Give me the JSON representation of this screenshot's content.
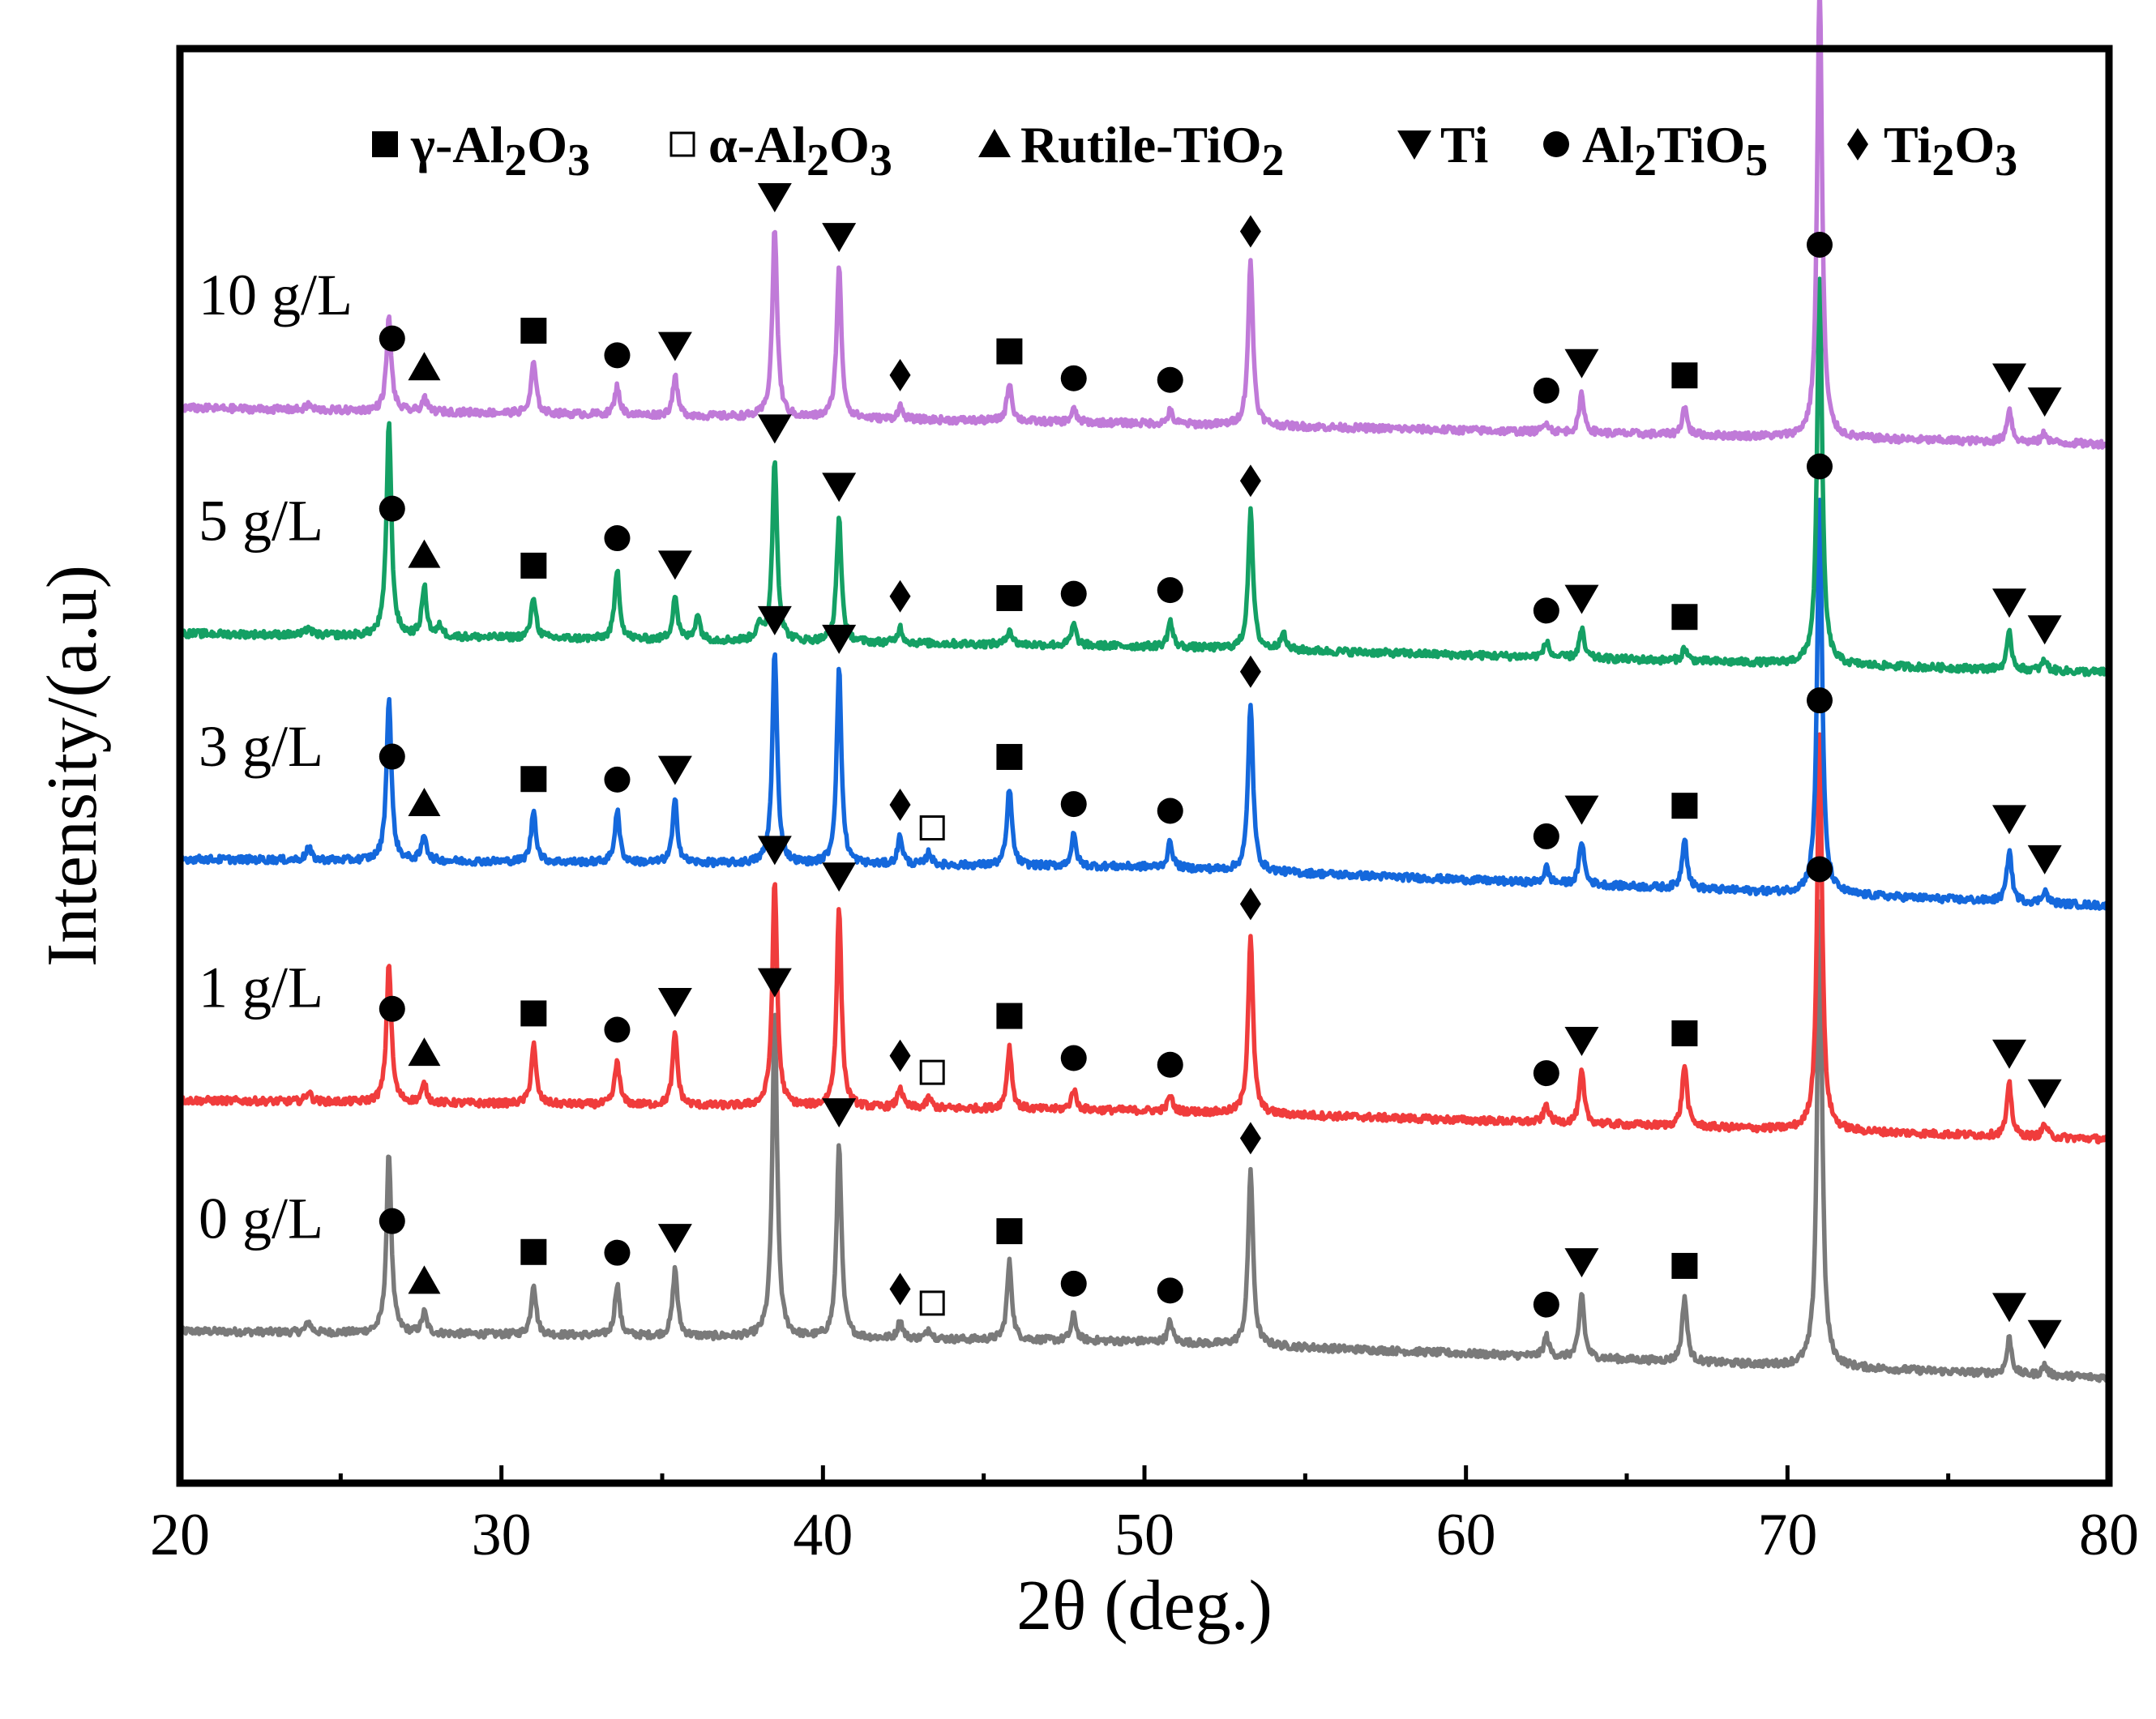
{
  "chart_data": {
    "type": "line",
    "title": "",
    "xlabel": "2θ (deg.)",
    "ylabel": "Intensity/(a.u)",
    "xlim": [
      20,
      80
    ],
    "x_ticks": [
      20,
      30,
      40,
      50,
      60,
      70,
      80
    ],
    "grid": false,
    "legend_position": "top",
    "legend": [
      {
        "symbol": "filled-square",
        "label": "γ-Al2O3"
      },
      {
        "symbol": "open-square",
        "label": "α-Al2O3"
      },
      {
        "symbol": "filled-triangle-up",
        "label": "Rutile-TiO2"
      },
      {
        "symbol": "filled-triangle-down",
        "label": "Ti"
      },
      {
        "symbol": "filled-circle",
        "label": "Al2TiO5"
      },
      {
        "symbol": "filled-diamond",
        "label": "Ti2O3"
      }
    ],
    "series": [
      {
        "name": "0 g/L",
        "color": "#7a7a7a",
        "offset": 0,
        "baseline": [
          [
            20,
            1.8
          ],
          [
            50,
            1.4
          ],
          [
            80,
            0.0
          ]
        ],
        "peaks": [
          [
            24.0,
            0.4
          ],
          [
            26.5,
            7.0
          ],
          [
            27.6,
            0.8
          ],
          [
            31.0,
            2.0
          ],
          [
            33.6,
            2.0
          ],
          [
            35.4,
            2.6
          ],
          [
            38.5,
            12.5
          ],
          [
            40.5,
            7.5
          ],
          [
            42.4,
            0.7
          ],
          [
            43.3,
            0.4
          ],
          [
            45.8,
            3.0
          ],
          [
            47.8,
            1.0
          ],
          [
            50.8,
            0.8
          ],
          [
            53.3,
            6.8
          ],
          [
            62.5,
            0.8
          ],
          [
            63.6,
            2.5
          ],
          [
            66.8,
            2.5
          ],
          [
            71.0,
            18.0
          ],
          [
            76.9,
            1.4
          ],
          [
            78.0,
            0.4
          ]
        ],
        "markers": [
          {
            "x": 26.6,
            "s": "filled-circle"
          },
          {
            "x": 27.6,
            "s": "filled-triangle-up"
          },
          {
            "x": 31.0,
            "s": "filled-square"
          },
          {
            "x": 33.6,
            "s": "filled-circle"
          },
          {
            "x": 35.4,
            "s": "filled-triangle-down"
          },
          {
            "x": 38.5,
            "s": "filled-triangle-down"
          },
          {
            "x": 40.5,
            "s": "filled-triangle-down"
          },
          {
            "x": 42.4,
            "s": "filled-diamond"
          },
          {
            "x": 43.4,
            "s": "open-square"
          },
          {
            "x": 45.8,
            "s": "filled-square"
          },
          {
            "x": 47.8,
            "s": "filled-circle"
          },
          {
            "x": 50.8,
            "s": "filled-circle"
          },
          {
            "x": 53.3,
            "s": "filled-diamond"
          },
          {
            "x": 62.5,
            "s": "filled-circle"
          },
          {
            "x": 63.6,
            "s": "filled-triangle-down"
          },
          {
            "x": 66.8,
            "s": "filled-square"
          },
          {
            "x": 71.0,
            "s": "filled-circle"
          },
          {
            "x": 76.9,
            "s": "filled-triangle-down"
          },
          {
            "x": 78.0,
            "s": "filled-triangle-down"
          }
        ]
      },
      {
        "name": "1 g/L",
        "color": "#f03c3c",
        "offset": 9.2,
        "baseline": [
          [
            20,
            1.5
          ],
          [
            50,
            1.1
          ],
          [
            80,
            0.0
          ]
        ],
        "peaks": [
          [
            24.0,
            0.4
          ],
          [
            26.5,
            5.4
          ],
          [
            27.6,
            0.7
          ],
          [
            31.0,
            2.3
          ],
          [
            33.6,
            1.7
          ],
          [
            35.4,
            2.8
          ],
          [
            38.5,
            8.7
          ],
          [
            40.5,
            7.7
          ],
          [
            42.4,
            0.8
          ],
          [
            43.3,
            0.4
          ],
          [
            45.8,
            2.4
          ],
          [
            47.8,
            0.8
          ],
          [
            50.8,
            0.6
          ],
          [
            53.3,
            6.9
          ],
          [
            62.5,
            0.7
          ],
          [
            63.6,
            2.0
          ],
          [
            66.8,
            2.4
          ],
          [
            71.0,
            15.4
          ],
          [
            76.9,
            2.0
          ],
          [
            78.0,
            0.5
          ]
        ],
        "markers": [
          {
            "x": 26.6,
            "s": "filled-circle"
          },
          {
            "x": 27.6,
            "s": "filled-triangle-up"
          },
          {
            "x": 31.0,
            "s": "filled-square"
          },
          {
            "x": 33.6,
            "s": "filled-circle"
          },
          {
            "x": 35.4,
            "s": "filled-triangle-down"
          },
          {
            "x": 38.5,
            "s": "filled-triangle-down"
          },
          {
            "x": 40.5,
            "s": "filled-triangle-down"
          },
          {
            "x": 42.4,
            "s": "filled-diamond"
          },
          {
            "x": 43.4,
            "s": "open-square"
          },
          {
            "x": 45.8,
            "s": "filled-square"
          },
          {
            "x": 47.8,
            "s": "filled-circle"
          },
          {
            "x": 50.8,
            "s": "filled-circle"
          },
          {
            "x": 53.3,
            "s": "filled-diamond"
          },
          {
            "x": 62.5,
            "s": "filled-circle"
          },
          {
            "x": 63.6,
            "s": "filled-triangle-down"
          },
          {
            "x": 66.8,
            "s": "filled-square"
          },
          {
            "x": 71.0,
            "s": "filled-circle"
          },
          {
            "x": 76.9,
            "s": "filled-triangle-down"
          },
          {
            "x": 78.0,
            "s": "filled-triangle-down"
          }
        ]
      },
      {
        "name": "3 g/L",
        "color": "#1468dc",
        "offset": 18.2,
        "baseline": [
          [
            20,
            1.8
          ],
          [
            50,
            1.5
          ],
          [
            80,
            0.0
          ]
        ],
        "peaks": [
          [
            24.0,
            0.5
          ],
          [
            26.5,
            6.3
          ],
          [
            27.6,
            1.0
          ],
          [
            31.0,
            2.0
          ],
          [
            33.6,
            2.0
          ],
          [
            35.4,
            2.4
          ],
          [
            38.5,
            8.2
          ],
          [
            40.5,
            7.5
          ],
          [
            42.4,
            1.1
          ],
          [
            43.3,
            0.5
          ],
          [
            45.8,
            3.0
          ],
          [
            47.8,
            1.2
          ],
          [
            50.8,
            1.0
          ],
          [
            53.3,
            6.5
          ],
          [
            62.5,
            0.6
          ],
          [
            63.6,
            1.7
          ],
          [
            66.8,
            2.0
          ],
          [
            71.0,
            15.3
          ],
          [
            76.9,
            2.0
          ],
          [
            78.0,
            0.5
          ]
        ],
        "markers": [
          {
            "x": 26.6,
            "s": "filled-circle"
          },
          {
            "x": 27.6,
            "s": "filled-triangle-up"
          },
          {
            "x": 31.0,
            "s": "filled-square"
          },
          {
            "x": 33.6,
            "s": "filled-circle"
          },
          {
            "x": 35.4,
            "s": "filled-triangle-down"
          },
          {
            "x": 38.5,
            "s": "filled-triangle-down"
          },
          {
            "x": 40.5,
            "s": "filled-triangle-down"
          },
          {
            "x": 42.4,
            "s": "filled-diamond"
          },
          {
            "x": 43.4,
            "s": "open-square"
          },
          {
            "x": 45.8,
            "s": "filled-square"
          },
          {
            "x": 47.8,
            "s": "filled-circle"
          },
          {
            "x": 50.8,
            "s": "filled-circle"
          },
          {
            "x": 53.3,
            "s": "filled-diamond"
          },
          {
            "x": 62.5,
            "s": "filled-circle"
          },
          {
            "x": 63.6,
            "s": "filled-triangle-down"
          },
          {
            "x": 66.8,
            "s": "filled-square"
          },
          {
            "x": 71.0,
            "s": "filled-circle"
          },
          {
            "x": 76.9,
            "s": "filled-triangle-down"
          },
          {
            "x": 78.0,
            "s": "filled-triangle-down"
          }
        ]
      },
      {
        "name": "5 g/L",
        "color": "#14a064",
        "offset": 27.2,
        "baseline": [
          [
            20,
            1.5
          ],
          [
            50,
            1.0
          ],
          [
            80,
            0.0
          ]
        ],
        "peaks": [
          [
            24.0,
            0.3
          ],
          [
            26.5,
            8.3
          ],
          [
            27.6,
            1.9
          ],
          [
            28.1,
            0.4
          ],
          [
            31.0,
            1.6
          ],
          [
            33.6,
            2.7
          ],
          [
            35.4,
            1.7
          ],
          [
            36.1,
            1.0
          ],
          [
            38.0,
            0.6
          ],
          [
            38.5,
            7.0
          ],
          [
            40.5,
            4.8
          ],
          [
            42.4,
            0.6
          ],
          [
            45.8,
            0.6
          ],
          [
            47.8,
            0.8
          ],
          [
            50.8,
            1.0
          ],
          [
            53.3,
            5.3
          ],
          [
            54.3,
            0.7
          ],
          [
            62.5,
            0.6
          ],
          [
            63.6,
            1.1
          ],
          [
            66.8,
            0.5
          ],
          [
            71.0,
            15.0
          ],
          [
            76.9,
            1.4
          ],
          [
            78.0,
            0.4
          ]
        ],
        "markers": [
          {
            "x": 26.6,
            "s": "filled-circle"
          },
          {
            "x": 27.6,
            "s": "filled-triangle-up"
          },
          {
            "x": 31.0,
            "s": "filled-square"
          },
          {
            "x": 33.6,
            "s": "filled-circle"
          },
          {
            "x": 35.4,
            "s": "filled-triangle-down"
          },
          {
            "x": 38.5,
            "s": "filled-triangle-down"
          },
          {
            "x": 40.5,
            "s": "filled-triangle-down"
          },
          {
            "x": 42.4,
            "s": "filled-diamond"
          },
          {
            "x": 45.8,
            "s": "filled-square"
          },
          {
            "x": 47.8,
            "s": "filled-circle"
          },
          {
            "x": 50.8,
            "s": "filled-circle"
          },
          {
            "x": 53.3,
            "s": "filled-diamond"
          },
          {
            "x": 62.5,
            "s": "filled-circle"
          },
          {
            "x": 63.6,
            "s": "filled-triangle-down"
          },
          {
            "x": 66.8,
            "s": "filled-square"
          },
          {
            "x": 71.0,
            "s": "filled-circle"
          },
          {
            "x": 76.9,
            "s": "filled-triangle-down"
          },
          {
            "x": 78.0,
            "s": "filled-triangle-down"
          }
        ]
      },
      {
        "name": "10 g/L",
        "color": "#c07ad8",
        "offset": 36.0,
        "baseline": [
          [
            20,
            1.4
          ],
          [
            50,
            0.8
          ],
          [
            80,
            0.0
          ]
        ],
        "peaks": [
          [
            24.0,
            0.2
          ],
          [
            26.5,
            3.6
          ],
          [
            27.6,
            0.5
          ],
          [
            31.0,
            2.0
          ],
          [
            33.6,
            1.1
          ],
          [
            35.4,
            1.5
          ],
          [
            38.5,
            7.3
          ],
          [
            40.5,
            5.8
          ],
          [
            42.4,
            0.5
          ],
          [
            45.8,
            1.5
          ],
          [
            47.8,
            0.5
          ],
          [
            50.8,
            0.5
          ],
          [
            53.3,
            6.3
          ],
          [
            62.5,
            0.4
          ],
          [
            63.6,
            1.5
          ],
          [
            66.8,
            1.1
          ],
          [
            71.0,
            17.5
          ],
          [
            76.9,
            1.3
          ],
          [
            78.0,
            0.4
          ]
        ],
        "markers": [
          {
            "x": 26.6,
            "s": "filled-circle"
          },
          {
            "x": 27.6,
            "s": "filled-triangle-up"
          },
          {
            "x": 31.0,
            "s": "filled-square"
          },
          {
            "x": 33.6,
            "s": "filled-circle"
          },
          {
            "x": 35.4,
            "s": "filled-triangle-down"
          },
          {
            "x": 38.5,
            "s": "filled-triangle-down"
          },
          {
            "x": 40.5,
            "s": "filled-triangle-down"
          },
          {
            "x": 42.4,
            "s": "filled-diamond"
          },
          {
            "x": 45.8,
            "s": "filled-square"
          },
          {
            "x": 47.8,
            "s": "filled-circle"
          },
          {
            "x": 50.8,
            "s": "filled-circle"
          },
          {
            "x": 53.3,
            "s": "filled-diamond"
          },
          {
            "x": 62.5,
            "s": "filled-circle"
          },
          {
            "x": 63.6,
            "s": "filled-triangle-down"
          },
          {
            "x": 66.8,
            "s": "filled-square"
          },
          {
            "x": 71.0,
            "s": "filled-circle"
          },
          {
            "x": 76.9,
            "s": "filled-triangle-down"
          },
          {
            "x": 78.0,
            "s": "filled-triangle-down"
          }
        ]
      }
    ]
  }
}
